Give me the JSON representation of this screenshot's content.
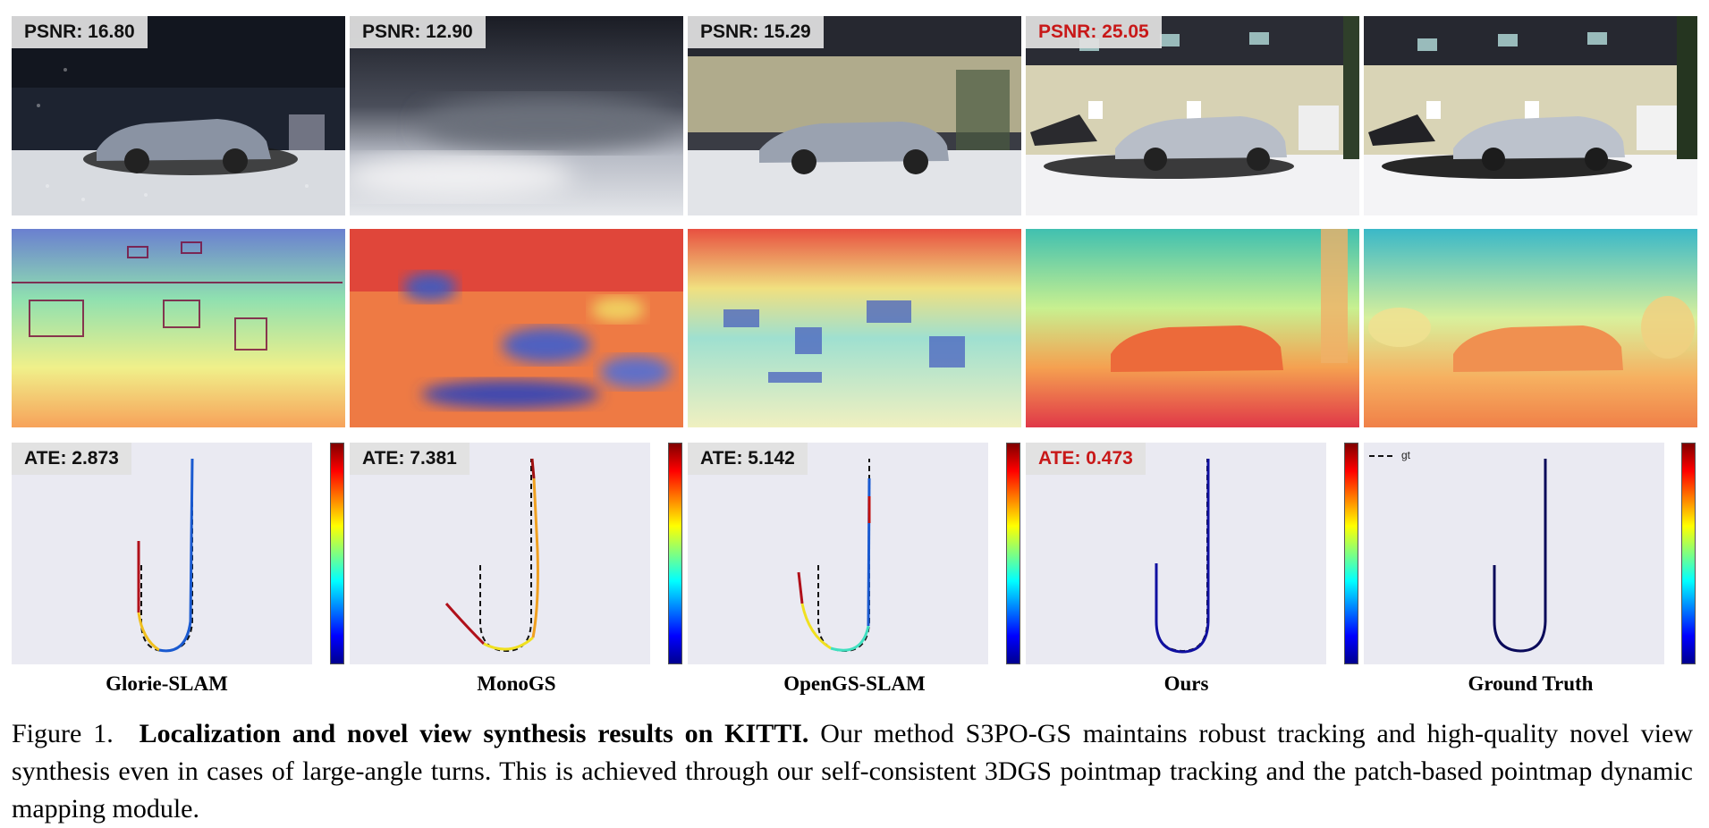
{
  "methods": [
    {
      "name": "Glorie-SLAM",
      "psnr_label": "PSNR: 16.80",
      "ate_label": "ATE: 2.873",
      "best": false
    },
    {
      "name": "MonoGS",
      "psnr_label": "PSNR: 12.90",
      "ate_label": "ATE: 7.381",
      "best": false
    },
    {
      "name": "OpenGS-SLAM",
      "psnr_label": "PSNR: 15.29",
      "ate_label": "ATE: 5.142",
      "best": false
    },
    {
      "name": "Ours",
      "psnr_label": "PSNR: 25.05",
      "ate_label": "ATE: 0.473",
      "best": true
    },
    {
      "name": "Ground Truth",
      "psnr_label": "",
      "ate_label": "",
      "best": false
    }
  ],
  "legend": {
    "gt_label": "gt"
  },
  "colors": {
    "highlight": "#c81818",
    "plot_bg": "#eaeaf2",
    "trajectory_gt": "#0a0a5a"
  },
  "caption": {
    "figure_number": "Figure 1.",
    "bold_title": "Localization and novel view synthesis results on KITTI.",
    "body": "Our method S3PO-GS maintains robust tracking and high-quality novel view synthesis even in cases of large-angle turns. This is achieved through our self-consistent 3DGS pointmap tracking and the patch-based pointmap dynamic mapping module."
  }
}
